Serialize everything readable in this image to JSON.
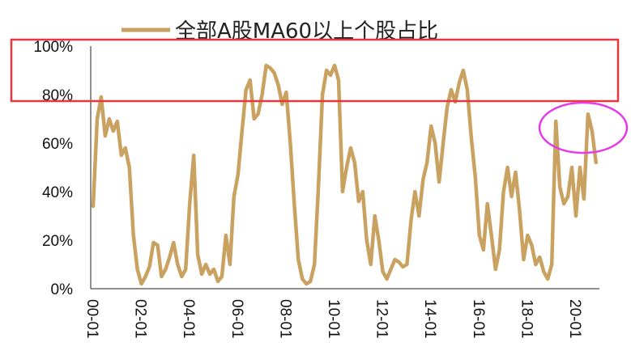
{
  "chart_data": {
    "type": "line",
    "title": "",
    "xlabel": "",
    "ylabel": "",
    "ylim": [
      0,
      100
    ],
    "y_unit": "%",
    "y_ticks": [
      "0%",
      "20%",
      "40%",
      "60%",
      "80%",
      "100%"
    ],
    "x_ticks": [
      "00-01",
      "02-01",
      "04-01",
      "06-01",
      "08-01",
      "10-01",
      "12-01",
      "14-01",
      "16-01",
      "18-01",
      "20-01"
    ],
    "grid": false,
    "legend_position": "top",
    "series": [
      {
        "name": "全部A股MA60以上个股占比",
        "color": "#c9a261",
        "x": [
          "2000-01",
          "2000-03",
          "2000-05",
          "2000-07",
          "2000-09",
          "2000-11",
          "2001-01",
          "2001-03",
          "2001-05",
          "2001-07",
          "2001-09",
          "2001-11",
          "2002-01",
          "2002-03",
          "2002-05",
          "2002-07",
          "2002-09",
          "2002-11",
          "2003-01",
          "2003-03",
          "2003-05",
          "2003-07",
          "2003-09",
          "2003-11",
          "2004-01",
          "2004-03",
          "2004-05",
          "2004-07",
          "2004-09",
          "2004-11",
          "2005-01",
          "2005-03",
          "2005-05",
          "2005-07",
          "2005-09",
          "2005-11",
          "2006-01",
          "2006-03",
          "2006-05",
          "2006-07",
          "2006-09",
          "2006-11",
          "2007-01",
          "2007-03",
          "2007-05",
          "2007-07",
          "2007-09",
          "2007-11",
          "2008-01",
          "2008-03",
          "2008-05",
          "2008-07",
          "2008-09",
          "2008-11",
          "2009-01",
          "2009-03",
          "2009-05",
          "2009-07",
          "2009-09",
          "2009-11",
          "2010-01",
          "2010-03",
          "2010-05",
          "2010-07",
          "2010-09",
          "2010-11",
          "2011-01",
          "2011-03",
          "2011-05",
          "2011-07",
          "2011-09",
          "2011-11",
          "2012-01",
          "2012-03",
          "2012-05",
          "2012-07",
          "2012-09",
          "2012-11",
          "2013-01",
          "2013-03",
          "2013-05",
          "2013-07",
          "2013-09",
          "2013-11",
          "2014-01",
          "2014-03",
          "2014-05",
          "2014-07",
          "2014-09",
          "2014-11",
          "2015-01",
          "2015-03",
          "2015-05",
          "2015-07",
          "2015-09",
          "2015-11",
          "2016-01",
          "2016-03",
          "2016-05",
          "2016-07",
          "2016-09",
          "2016-11",
          "2017-01",
          "2017-03",
          "2017-05",
          "2017-07",
          "2017-09",
          "2017-11",
          "2018-01",
          "2018-03",
          "2018-05",
          "2018-07",
          "2018-09",
          "2018-11",
          "2019-01",
          "2019-03",
          "2019-05",
          "2019-07",
          "2019-09",
          "2019-11",
          "2020-01",
          "2020-03",
          "2020-05",
          "2020-07",
          "2020-09",
          "2020-11"
        ],
        "values": [
          34,
          70,
          79,
          63,
          70,
          65,
          69,
          55,
          58,
          50,
          22,
          8,
          2,
          5,
          9,
          19,
          18,
          5,
          8,
          13,
          19,
          10,
          5,
          8,
          35,
          55,
          14,
          6,
          10,
          6,
          8,
          3,
          5,
          22,
          10,
          38,
          47,
          65,
          82,
          86,
          70,
          72,
          80,
          92,
          91,
          89,
          84,
          76,
          81,
          60,
          35,
          12,
          4,
          2,
          3,
          10,
          42,
          80,
          90,
          88,
          92,
          86,
          40,
          50,
          58,
          52,
          36,
          40,
          20,
          10,
          30,
          20,
          7,
          4,
          8,
          12,
          11,
          9,
          10,
          28,
          40,
          30,
          45,
          52,
          67,
          60,
          44,
          60,
          75,
          82,
          77,
          85,
          90,
          82,
          62,
          46,
          22,
          16,
          35,
          22,
          8,
          16,
          40,
          50,
          38,
          48,
          32,
          12,
          22,
          18,
          10,
          13,
          7,
          4,
          10,
          69,
          42,
          35,
          38,
          50,
          30,
          50,
          37,
          72,
          65,
          52
        ]
      }
    ]
  },
  "annotations": {
    "rect_color": "#e8383d",
    "ellipse_color": "#e63ae6"
  }
}
